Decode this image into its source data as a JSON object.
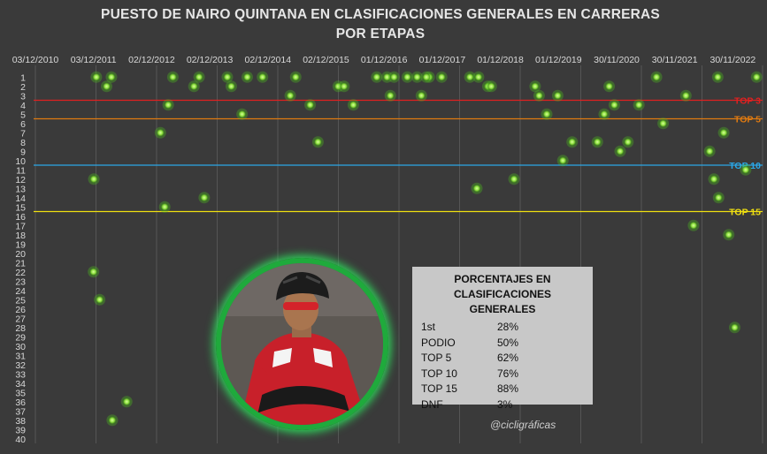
{
  "chart_data": {
    "type": "scatter",
    "title": "PUESTO DE NAIRO QUINTANA EN CLASIFICACIONES GENERALES EN CARRERAS POR ETAPAS",
    "xlabel": "",
    "ylabel": "",
    "x_ticks": [
      "03/12/2010",
      "03/12/2011",
      "02/12/2012",
      "02/12/2013",
      "02/12/2014",
      "02/12/2015",
      "01/12/2016",
      "01/12/2017",
      "01/12/2018",
      "01/12/2019",
      "30/11/2020",
      "30/11/2021",
      "30/11/2022"
    ],
    "xlim": [
      "2010-12-03",
      "2022-11-30"
    ],
    "ylim": [
      1,
      40
    ],
    "y_inverted": true,
    "y_ticks": [
      1,
      2,
      3,
      4,
      5,
      6,
      7,
      8,
      9,
      10,
      11,
      12,
      13,
      14,
      15,
      16,
      17,
      18,
      19,
      20,
      21,
      22,
      23,
      24,
      25,
      26,
      27,
      28,
      29,
      30,
      31,
      32,
      33,
      34,
      35,
      36,
      37,
      38,
      39,
      40
    ],
    "grid": true,
    "reference_lines": [
      {
        "label": "TOP 3",
        "y": 3,
        "color": "#e02020"
      },
      {
        "label": "TOP 5",
        "y": 5,
        "color": "#e07a10"
      },
      {
        "label": "TOP 10",
        "y": 10,
        "color": "#2aa8e8"
      },
      {
        "label": "TOP 15",
        "y": 15,
        "color": "#f0e010"
      }
    ],
    "marker_color": "#a6f25a",
    "points": [
      {
        "x": "2011-11-20",
        "y": 12
      },
      {
        "x": "2011-11-18",
        "y": 22
      },
      {
        "x": "2011-12-25",
        "y": 25
      },
      {
        "x": "2011-12-05",
        "y": 1
      },
      {
        "x": "2012-02-05",
        "y": 2
      },
      {
        "x": "2012-03-05",
        "y": 1
      },
      {
        "x": "2012-03-10",
        "y": 38
      },
      {
        "x": "2012-06-05",
        "y": 36
      },
      {
        "x": "2012-12-25",
        "y": 7
      },
      {
        "x": "2013-01-20",
        "y": 15
      },
      {
        "x": "2013-02-10",
        "y": 4
      },
      {
        "x": "2013-03-10",
        "y": 1
      },
      {
        "x": "2013-07-15",
        "y": 2
      },
      {
        "x": "2013-08-15",
        "y": 1
      },
      {
        "x": "2013-09-15",
        "y": 14
      },
      {
        "x": "2014-02-01",
        "y": 1
      },
      {
        "x": "2014-02-25",
        "y": 2
      },
      {
        "x": "2014-05-01",
        "y": 5
      },
      {
        "x": "2014-06-01",
        "y": 1
      },
      {
        "x": "2014-09-01",
        "y": 1
      },
      {
        "x": "2015-02-15",
        "y": 3
      },
      {
        "x": "2015-03-20",
        "y": 1
      },
      {
        "x": "2015-06-15",
        "y": 4
      },
      {
        "x": "2015-08-01",
        "y": 8
      },
      {
        "x": "2015-12-01",
        "y": 2
      },
      {
        "x": "2016-01-05",
        "y": 2
      },
      {
        "x": "2016-03-01",
        "y": 4
      },
      {
        "x": "2016-07-20",
        "y": 1
      },
      {
        "x": "2016-09-20",
        "y": 1
      },
      {
        "x": "2016-10-10",
        "y": 3
      },
      {
        "x": "2016-11-01",
        "y": 1
      },
      {
        "x": "2017-01-20",
        "y": 1
      },
      {
        "x": "2017-04-15",
        "y": 3
      },
      {
        "x": "2017-06-01",
        "y": 1
      },
      {
        "x": "2017-08-15",
        "y": 1
      },
      {
        "x": "2017-03-20",
        "y": 1
      },
      {
        "x": "2017-05-15",
        "y": 1
      },
      {
        "x": "2018-02-01",
        "y": 1
      },
      {
        "x": "2018-03-15",
        "y": 13
      },
      {
        "x": "2018-03-25",
        "y": 1
      },
      {
        "x": "2018-05-20",
        "y": 2
      },
      {
        "x": "2018-06-10",
        "y": 2
      },
      {
        "x": "2018-10-25",
        "y": 12
      },
      {
        "x": "2019-03-01",
        "y": 2
      },
      {
        "x": "2019-03-25",
        "y": 3
      },
      {
        "x": "2019-05-10",
        "y": 5
      },
      {
        "x": "2019-07-15",
        "y": 3
      },
      {
        "x": "2019-08-15",
        "y": 10
      },
      {
        "x": "2019-10-10",
        "y": 8
      },
      {
        "x": "2020-03-10",
        "y": 8
      },
      {
        "x": "2020-04-20",
        "y": 5
      },
      {
        "x": "2020-05-20",
        "y": 2
      },
      {
        "x": "2020-06-20",
        "y": 4
      },
      {
        "x": "2020-07-25",
        "y": 9
      },
      {
        "x": "2020-09-10",
        "y": 8
      },
      {
        "x": "2020-11-15",
        "y": 4
      },
      {
        "x": "2021-03-01",
        "y": 1
      },
      {
        "x": "2021-04-10",
        "y": 6
      },
      {
        "x": "2021-08-25",
        "y": 3
      },
      {
        "x": "2021-10-10",
        "y": 17
      },
      {
        "x": "2022-01-15",
        "y": 9
      },
      {
        "x": "2022-02-10",
        "y": 12
      },
      {
        "x": "2022-03-05",
        "y": 1
      },
      {
        "x": "2022-03-10",
        "y": 14
      },
      {
        "x": "2022-04-10",
        "y": 7
      },
      {
        "x": "2022-05-10",
        "y": 18
      },
      {
        "x": "2022-06-15",
        "y": 28
      },
      {
        "x": "2022-08-20",
        "y": 11
      },
      {
        "x": "2022-10-25",
        "y": 1
      }
    ]
  },
  "stats": {
    "title": "PORCENTAJES EN CLASIFICACIONES GENERALES",
    "rows": [
      {
        "label": "1st",
        "value": "28%"
      },
      {
        "label": "PODIO",
        "value": "50%"
      },
      {
        "label": "TOP 5",
        "value": "62%"
      },
      {
        "label": "TOP 10",
        "value": "76%"
      },
      {
        "label": "TOP 15",
        "value": "88%"
      },
      {
        "label": "DNF",
        "value": "3%"
      }
    ]
  },
  "watermark": "@cicligráficas"
}
